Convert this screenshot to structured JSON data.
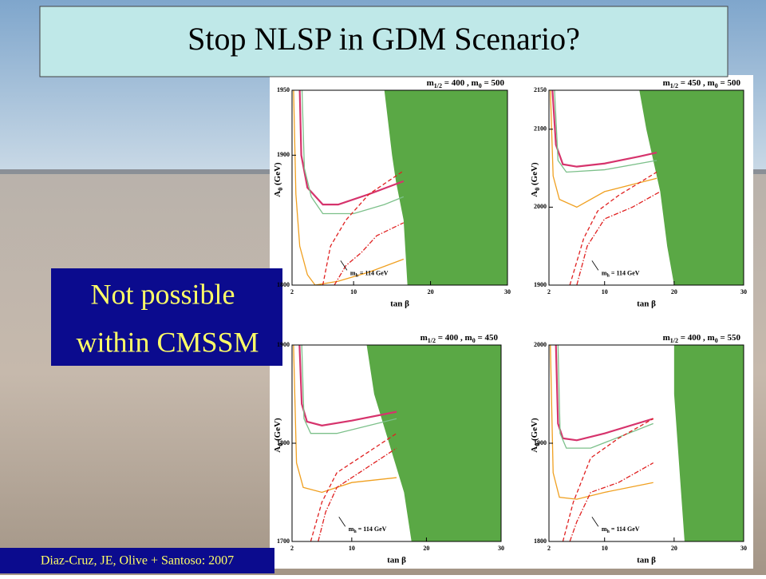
{
  "title": "Stop NLSP in GDM Scenario?",
  "callout": {
    "lines": [
      "Not possible",
      "within CMSSM"
    ]
  },
  "citation": "Diaz-Cruz, JE, Olive + Santoso: 2007",
  "chart_data": [
    {
      "type": "line",
      "title_parts": [
        "m",
        "1/2",
        " = 400 ,  m",
        "0",
        " = 500"
      ],
      "y_label_parts": [
        "A",
        "0",
        " (GeV)"
      ],
      "x_label": "tan β",
      "annotation_parts": [
        "m",
        "h",
        " = 114 GeV"
      ],
      "xlim": [
        2,
        30
      ],
      "xticks": [
        2,
        10,
        20,
        30
      ],
      "ylim": [
        1800,
        1950
      ],
      "yticks": [
        1800,
        1900,
        1950
      ],
      "shaded_region": {
        "color": "#5aa845",
        "x": [
          14,
          15,
          15.5,
          16.5,
          17
        ],
        "y": [
          1950,
          1900,
          1880,
          1850,
          1800
        ]
      },
      "series": [
        {
          "color": "#d6336c",
          "dash": "solid",
          "x": [
            3.0,
            3.2,
            4,
            6,
            8,
            12,
            16.5
          ],
          "values": [
            1950,
            1900,
            1875,
            1862,
            1862,
            1870,
            1880
          ]
        },
        {
          "color": "#7cc08a",
          "dash": "solid",
          "x": [
            3.3,
            3.6,
            4.5,
            6,
            10,
            14,
            16.5
          ],
          "values": [
            1950,
            1890,
            1868,
            1855,
            1855,
            1862,
            1868
          ]
        },
        {
          "color": "#f0a020",
          "dash": "solid",
          "x": [
            2.2,
            2.5,
            3,
            4,
            5,
            8,
            12,
            16.5
          ],
          "values": [
            1950,
            1870,
            1830,
            1808,
            1800,
            1803,
            1810,
            1820
          ]
        },
        {
          "color": "#e02020",
          "dash": "dashed",
          "x": [
            6,
            7,
            9,
            12,
            16.5
          ],
          "values": [
            1800,
            1830,
            1850,
            1870,
            1888
          ]
        },
        {
          "color": "#e02020",
          "dash": "dashdot",
          "x": [
            7.5,
            9,
            11,
            13,
            16.5
          ],
          "values": [
            1800,
            1815,
            1825,
            1838,
            1848
          ]
        }
      ]
    },
    {
      "type": "line",
      "title_parts": [
        "m",
        "1/2",
        " = 450 ,  m",
        "0",
        " = 500"
      ],
      "y_label_parts": [
        "A",
        "0",
        " (GeV)"
      ],
      "x_label": "tan β",
      "annotation_parts": [
        "m",
        "h",
        " = 114 GeV"
      ],
      "xlim": [
        2,
        30
      ],
      "xticks": [
        2,
        10,
        20,
        30
      ],
      "ylim": [
        1900,
        2150
      ],
      "yticks": [
        1900,
        2000,
        2100,
        2150
      ],
      "shaded_region": {
        "color": "#5aa845",
        "x": [
          15,
          16,
          17,
          18,
          19,
          20
        ],
        "y": [
          2150,
          2100,
          2060,
          2020,
          1950,
          1900
        ]
      },
      "series": [
        {
          "color": "#d6336c",
          "dash": "solid",
          "x": [
            2.5,
            3,
            4,
            6,
            10,
            15,
            17.5
          ],
          "values": [
            2150,
            2080,
            2055,
            2052,
            2056,
            2065,
            2070
          ]
        },
        {
          "color": "#7cc08a",
          "dash": "solid",
          "x": [
            2.8,
            3.3,
            4.5,
            10,
            17.5
          ],
          "values": [
            2150,
            2060,
            2045,
            2048,
            2060
          ]
        },
        {
          "color": "#f0a020",
          "dash": "solid",
          "x": [
            2.2,
            2.6,
            3.5,
            6,
            10,
            17.5
          ],
          "values": [
            2150,
            2040,
            2010,
            2000,
            2020,
            2037
          ]
        },
        {
          "color": "#e02020",
          "dash": "dashed",
          "x": [
            5,
            7,
            9,
            12,
            17.5
          ],
          "values": [
            1900,
            1960,
            1995,
            2015,
            2045
          ]
        },
        {
          "color": "#e02020",
          "dash": "dashdot",
          "x": [
            6,
            7.5,
            10,
            14,
            18
          ],
          "values": [
            1900,
            1950,
            1985,
            2000,
            2020
          ]
        }
      ]
    },
    {
      "type": "line",
      "title_parts": [
        "m",
        "1/2",
        " = 400 ,  m",
        "0",
        " = 450"
      ],
      "y_label_parts": [
        "A",
        "0",
        " (GeV)"
      ],
      "x_label": "tan β",
      "annotation_parts": [
        "m",
        "h",
        " = 114 GeV"
      ],
      "xlim": [
        2,
        30
      ],
      "xticks": [
        2,
        10,
        20,
        30
      ],
      "ylim": [
        1700,
        1900
      ],
      "yticks": [
        1700,
        1800,
        1900
      ],
      "shaded_region": {
        "color": "#5aa845",
        "x": [
          12,
          13,
          15,
          17,
          18
        ],
        "y": [
          1900,
          1850,
          1800,
          1750,
          1700
        ]
      },
      "series": [
        {
          "color": "#d6336c",
          "dash": "solid",
          "x": [
            3,
            3.3,
            4,
            6,
            10,
            16
          ],
          "values": [
            1900,
            1840,
            1822,
            1818,
            1823,
            1832
          ]
        },
        {
          "color": "#7cc08a",
          "dash": "solid",
          "x": [
            3.3,
            3.6,
            4.5,
            8,
            16
          ],
          "values": [
            1900,
            1825,
            1810,
            1810,
            1825
          ]
        },
        {
          "color": "#f0a020",
          "dash": "solid",
          "x": [
            2.2,
            2.6,
            3.5,
            6,
            10,
            16
          ],
          "values": [
            1900,
            1780,
            1755,
            1750,
            1760,
            1765
          ]
        },
        {
          "color": "#e02020",
          "dash": "dashed",
          "x": [
            4.5,
            6,
            8,
            12,
            16
          ],
          "values": [
            1700,
            1740,
            1770,
            1790,
            1810
          ]
        },
        {
          "color": "#e02020",
          "dash": "dashdot",
          "x": [
            5.5,
            6.5,
            8,
            11,
            16
          ],
          "values": [
            1700,
            1730,
            1755,
            1770,
            1795
          ]
        }
      ]
    },
    {
      "type": "line",
      "title_parts": [
        "m",
        "1/2",
        " = 400 ,  m",
        "0",
        " = 550"
      ],
      "y_label_parts": [
        "A",
        "0",
        " (GeV)"
      ],
      "x_label": "tan β",
      "annotation_parts": [
        "m",
        "h",
        " = 114 GeV"
      ],
      "xlim": [
        2,
        30
      ],
      "xticks": [
        2,
        10,
        20,
        30
      ],
      "ylim": [
        1800,
        2000
      ],
      "yticks": [
        1800,
        1900,
        2000
      ],
      "shaded_region": {
        "color": "#5aa845",
        "x": [
          20,
          20,
          20.5,
          21,
          21.5
        ],
        "y": [
          2000,
          1950,
          1900,
          1850,
          1800
        ]
      },
      "series": [
        {
          "color": "#d6336c",
          "dash": "solid",
          "x": [
            3,
            3.3,
            4,
            6,
            10,
            17
          ],
          "values": [
            2000,
            1920,
            1905,
            1903,
            1910,
            1925
          ]
        },
        {
          "color": "#7cc08a",
          "dash": "solid",
          "x": [
            3.3,
            3.6,
            4.5,
            8,
            17
          ],
          "values": [
            2000,
            1910,
            1895,
            1895,
            1920
          ]
        },
        {
          "color": "#f0a020",
          "dash": "solid",
          "x": [
            2.2,
            2.6,
            3.5,
            6,
            10,
            17
          ],
          "values": [
            2000,
            1870,
            1845,
            1843,
            1850,
            1860
          ]
        },
        {
          "color": "#e02020",
          "dash": "dashed",
          "x": [
            4,
            5.5,
            8,
            12,
            17
          ],
          "values": [
            1800,
            1840,
            1885,
            1905,
            1925
          ]
        },
        {
          "color": "#e02020",
          "dash": "dashdot",
          "x": [
            5,
            6,
            8,
            12,
            17
          ],
          "values": [
            1800,
            1820,
            1850,
            1860,
            1880
          ]
        }
      ]
    }
  ]
}
